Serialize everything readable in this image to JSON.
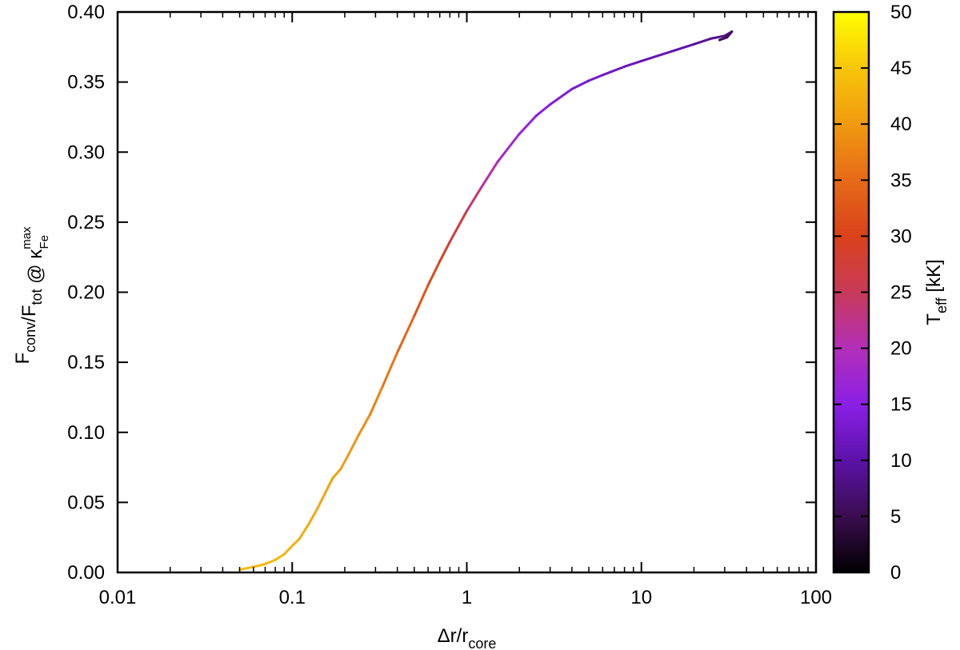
{
  "chart_data": {
    "type": "line",
    "title": "",
    "xlabel": {
      "main": "Δr/r",
      "sub": "core"
    },
    "ylabel": {
      "parts": [
        {
          "t": "F",
          "s": "conv"
        },
        {
          "t": "/F",
          "s": "tot"
        },
        {
          "t": "  @  κ",
          "s": "Fe",
          "sup": "max"
        }
      ]
    },
    "xscale": "log",
    "xlim": [
      0.01,
      100
    ],
    "ylim": [
      0.0,
      0.4
    ],
    "xticks": [
      {
        "v": 0.01,
        "label": "0.01"
      },
      {
        "v": 0.1,
        "label": "0.1"
      },
      {
        "v": 1,
        "label": "1"
      },
      {
        "v": 10,
        "label": "10"
      },
      {
        "v": 100,
        "label": "100"
      }
    ],
    "yticks": [
      {
        "v": 0.0,
        "label": "0.00"
      },
      {
        "v": 0.05,
        "label": "0.05"
      },
      {
        "v": 0.1,
        "label": "0.10"
      },
      {
        "v": 0.15,
        "label": "0.15"
      },
      {
        "v": 0.2,
        "label": "0.20"
      },
      {
        "v": 0.25,
        "label": "0.25"
      },
      {
        "v": 0.3,
        "label": "0.30"
      },
      {
        "v": 0.35,
        "label": "0.35"
      },
      {
        "v": 0.4,
        "label": "0.40"
      }
    ],
    "grid": false,
    "legend": "none",
    "colorbar": {
      "label": {
        "main": "T",
        "sub": "eff",
        "tail": " [kK]"
      },
      "range": [
        0,
        50
      ],
      "ticks": [
        {
          "v": 0,
          "label": "0"
        },
        {
          "v": 5,
          "label": "5"
        },
        {
          "v": 10,
          "label": "10"
        },
        {
          "v": 15,
          "label": "15"
        },
        {
          "v": 20,
          "label": "20"
        },
        {
          "v": 25,
          "label": "25"
        },
        {
          "v": 30,
          "label": "30"
        },
        {
          "v": 35,
          "label": "35"
        },
        {
          "v": 40,
          "label": "40"
        },
        {
          "v": 45,
          "label": "45"
        },
        {
          "v": 50,
          "label": "50"
        }
      ],
      "palette": [
        "#000000",
        "#3a0d4f",
        "#5b12a8",
        "#8b1fe6",
        "#b22fb8",
        "#c83a5a",
        "#d9421a",
        "#e66a18",
        "#f09a10",
        "#f7c60a",
        "#ffff00"
      ]
    },
    "series": [
      {
        "points": [
          {
            "x": 0.05,
            "y": 0.002,
            "t": 44
          },
          {
            "x": 0.06,
            "y": 0.004,
            "t": 43.8
          },
          {
            "x": 0.07,
            "y": 0.006,
            "t": 43.6
          },
          {
            "x": 0.08,
            "y": 0.009,
            "t": 43.3
          },
          {
            "x": 0.09,
            "y": 0.013,
            "t": 43.0
          },
          {
            "x": 0.1,
            "y": 0.019,
            "t": 42.7
          },
          {
            "x": 0.11,
            "y": 0.024,
            "t": 42.4
          },
          {
            "x": 0.125,
            "y": 0.035,
            "t": 42.0
          },
          {
            "x": 0.14,
            "y": 0.046,
            "t": 41.6
          },
          {
            "x": 0.155,
            "y": 0.057,
            "t": 41.2
          },
          {
            "x": 0.17,
            "y": 0.067,
            "t": 40.8
          },
          {
            "x": 0.19,
            "y": 0.074,
            "t": 40.4
          },
          {
            "x": 0.21,
            "y": 0.084,
            "t": 40.0
          },
          {
            "x": 0.24,
            "y": 0.098,
            "t": 39.2
          },
          {
            "x": 0.28,
            "y": 0.113,
            "t": 38.2
          },
          {
            "x": 0.33,
            "y": 0.133,
            "t": 37.0
          },
          {
            "x": 0.4,
            "y": 0.157,
            "t": 35.4
          },
          {
            "x": 0.5,
            "y": 0.183,
            "t": 33.5
          },
          {
            "x": 0.6,
            "y": 0.205,
            "t": 31.8
          },
          {
            "x": 0.7,
            "y": 0.222,
            "t": 30.2
          },
          {
            "x": 0.8,
            "y": 0.236,
            "t": 28.5
          },
          {
            "x": 1.0,
            "y": 0.258,
            "t": 25.5
          },
          {
            "x": 1.2,
            "y": 0.274,
            "t": 22.5
          },
          {
            "x": 1.5,
            "y": 0.293,
            "t": 19.5
          },
          {
            "x": 2.0,
            "y": 0.313,
            "t": 17.0
          },
          {
            "x": 2.5,
            "y": 0.326,
            "t": 15.5
          },
          {
            "x": 3.0,
            "y": 0.334,
            "t": 14.5
          },
          {
            "x": 4.0,
            "y": 0.345,
            "t": 13.5
          },
          {
            "x": 5.0,
            "y": 0.351,
            "t": 12.8
          },
          {
            "x": 6.0,
            "y": 0.355,
            "t": 12.4
          },
          {
            "x": 8.0,
            "y": 0.361,
            "t": 11.9
          },
          {
            "x": 10.0,
            "y": 0.365,
            "t": 11.5
          },
          {
            "x": 15.0,
            "y": 0.372,
            "t": 10.8
          },
          {
            "x": 20.0,
            "y": 0.377,
            "t": 10.0
          },
          {
            "x": 25.0,
            "y": 0.381,
            "t": 9.0
          },
          {
            "x": 30.0,
            "y": 0.383,
            "t": 8.0
          },
          {
            "x": 33.0,
            "y": 0.386,
            "t": 7.0
          },
          {
            "x": 31.0,
            "y": 0.382,
            "t": 6.0
          },
          {
            "x": 28.0,
            "y": 0.38,
            "t": 5.0
          }
        ]
      }
    ]
  }
}
